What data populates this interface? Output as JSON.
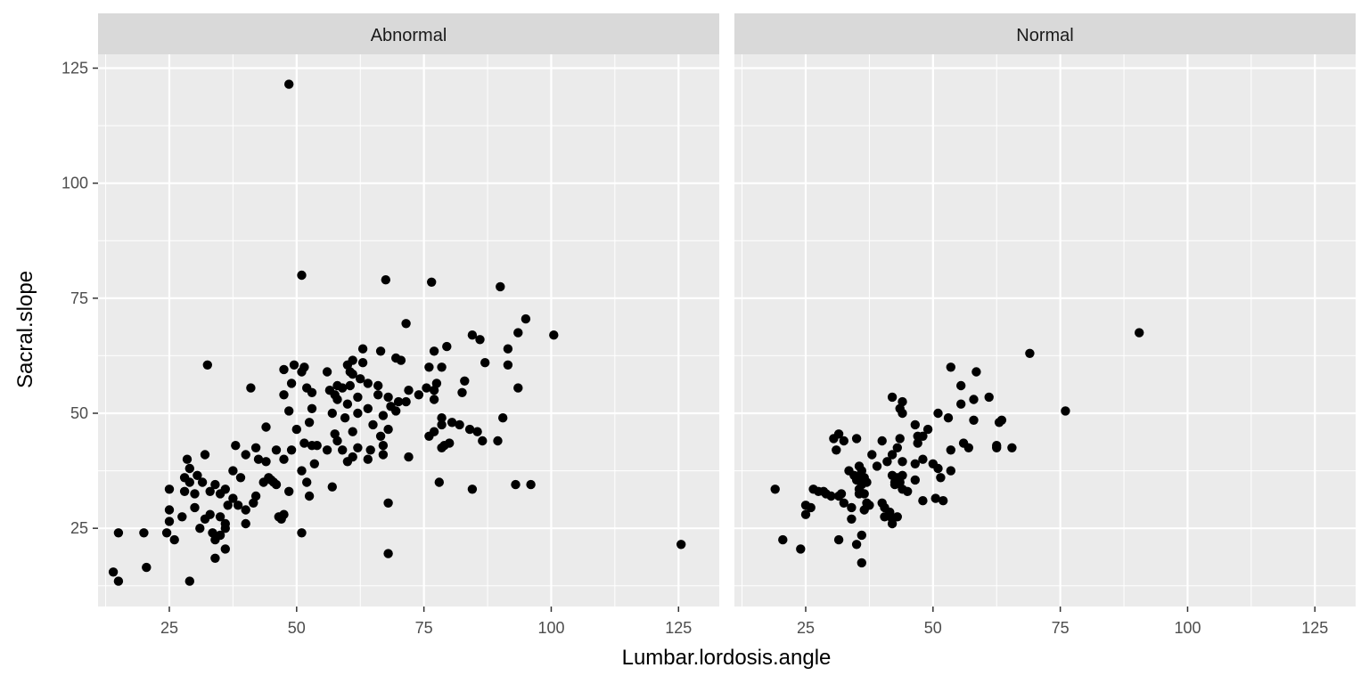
{
  "chart_data": {
    "type": "scatter",
    "title": "",
    "xlabel": "Lumbar.lordosis.angle",
    "ylabel": "Sacral.slope",
    "xlim": [
      11,
      133
    ],
    "ylim": [
      8,
      128
    ],
    "x_ticks": [
      25,
      50,
      75,
      100,
      125
    ],
    "y_ticks": [
      25,
      50,
      75,
      100,
      125
    ],
    "x_tick_labels": [
      "25",
      "50",
      "75",
      "100",
      "125"
    ],
    "y_tick_labels": [
      "25",
      "50",
      "75",
      "100",
      "125"
    ],
    "grid": true,
    "legend": "none",
    "colors": {
      "panel_bg": "#ebebeb",
      "strip_bg": "#d9d9d9",
      "grid": "#ffffff",
      "point": "#000000"
    },
    "facets": [
      {
        "label": "Abnormal",
        "points": [
          [
            48.5,
            121.5
          ],
          [
            51,
            80
          ],
          [
            67.5,
            79
          ],
          [
            76.5,
            78.5
          ],
          [
            90,
            77.5
          ],
          [
            95,
            70.5
          ],
          [
            71.5,
            69.5
          ],
          [
            93.5,
            67.5
          ],
          [
            100.5,
            67
          ],
          [
            84.5,
            67
          ],
          [
            86,
            66
          ],
          [
            79.5,
            64.5
          ],
          [
            91.5,
            64
          ],
          [
            63,
            64
          ],
          [
            66.5,
            63.5
          ],
          [
            77,
            63.5
          ],
          [
            69.5,
            62
          ],
          [
            70.5,
            61.5
          ],
          [
            61,
            61.5
          ],
          [
            63,
            61
          ],
          [
            87,
            61
          ],
          [
            32.5,
            60.5
          ],
          [
            49.5,
            60.5
          ],
          [
            60,
            60.5
          ],
          [
            51.5,
            60
          ],
          [
            47.5,
            59.5
          ],
          [
            76,
            60
          ],
          [
            78.5,
            60
          ],
          [
            91.5,
            60.5
          ],
          [
            56,
            59
          ],
          [
            51,
            59
          ],
          [
            60.5,
            59
          ],
          [
            61,
            58.5
          ],
          [
            62.5,
            57.5
          ],
          [
            64,
            56.5
          ],
          [
            66,
            56
          ],
          [
            49,
            56.5
          ],
          [
            52,
            55.5
          ],
          [
            56.5,
            55
          ],
          [
            58,
            56
          ],
          [
            59,
            55.5
          ],
          [
            60.5,
            56
          ],
          [
            72,
            55
          ],
          [
            77.5,
            56.5
          ],
          [
            83,
            57
          ],
          [
            77,
            55
          ],
          [
            75.5,
            55.5
          ],
          [
            82.5,
            54.5
          ],
          [
            93.5,
            55.5
          ],
          [
            74,
            54
          ],
          [
            41,
            55.5
          ],
          [
            47.5,
            54
          ],
          [
            53,
            54.5
          ],
          [
            57.5,
            54
          ],
          [
            62,
            53.5
          ],
          [
            66,
            54
          ],
          [
            68,
            53.5
          ],
          [
            70,
            52.5
          ],
          [
            71.5,
            52.5
          ],
          [
            77,
            53
          ],
          [
            58,
            53
          ],
          [
            60,
            52
          ],
          [
            64,
            51
          ],
          [
            68.5,
            51.5
          ],
          [
            69.5,
            50.5
          ],
          [
            53,
            51
          ],
          [
            57,
            50
          ],
          [
            59.5,
            49
          ],
          [
            62,
            50
          ],
          [
            48.5,
            50.5
          ],
          [
            67,
            49.5
          ],
          [
            78.5,
            49
          ],
          [
            80.5,
            48
          ],
          [
            82,
            47.5
          ],
          [
            84,
            46.5
          ],
          [
            85.5,
            46
          ],
          [
            90.5,
            49
          ],
          [
            78.5,
            47.5
          ],
          [
            44,
            47
          ],
          [
            52.5,
            48
          ],
          [
            65,
            47.5
          ],
          [
            68,
            46.5
          ],
          [
            50,
            46.5
          ],
          [
            61,
            46
          ],
          [
            57.5,
            45.5
          ],
          [
            66.5,
            45
          ],
          [
            76,
            45
          ],
          [
            77,
            46
          ],
          [
            79,
            43
          ],
          [
            80,
            43.5
          ],
          [
            78.5,
            42.5
          ],
          [
            86.5,
            44
          ],
          [
            89.5,
            44
          ],
          [
            38,
            43
          ],
          [
            42,
            42.5
          ],
          [
            46,
            42
          ],
          [
            49,
            42
          ],
          [
            51.5,
            43.5
          ],
          [
            53,
            43
          ],
          [
            54,
            43
          ],
          [
            56,
            42
          ],
          [
            58,
            44
          ],
          [
            59,
            42
          ],
          [
            62,
            42.5
          ],
          [
            64.5,
            42
          ],
          [
            67,
            43
          ],
          [
            47.5,
            40
          ],
          [
            40,
            41
          ],
          [
            42.5,
            40
          ],
          [
            44,
            39.5
          ],
          [
            53.5,
            39
          ],
          [
            60,
            39.5
          ],
          [
            61,
            40.5
          ],
          [
            64,
            40
          ],
          [
            67,
            41
          ],
          [
            72,
            40.5
          ],
          [
            32,
            41
          ],
          [
            51,
            37.5
          ],
          [
            44.5,
            36
          ],
          [
            43.5,
            35
          ],
          [
            45,
            35.5
          ],
          [
            45.5,
            35
          ],
          [
            46,
            34.5
          ],
          [
            52,
            35
          ],
          [
            57,
            34
          ],
          [
            78,
            35
          ],
          [
            84.5,
            33.5
          ],
          [
            93,
            34.5
          ],
          [
            96,
            34.5
          ],
          [
            25,
            33.5
          ],
          [
            28,
            33
          ],
          [
            30,
            32.5
          ],
          [
            33,
            33
          ],
          [
            35,
            32.5
          ],
          [
            42,
            32
          ],
          [
            48.5,
            33
          ],
          [
            52.5,
            32
          ],
          [
            30.5,
            36.5
          ],
          [
            31.5,
            35
          ],
          [
            34,
            34.5
          ],
          [
            36,
            33.5
          ],
          [
            37.5,
            37.5
          ],
          [
            39,
            36
          ],
          [
            29,
            35
          ],
          [
            28,
            36
          ],
          [
            29,
            38
          ],
          [
            28.5,
            40
          ],
          [
            25,
            29
          ],
          [
            27.5,
            27.5
          ],
          [
            25,
            26.5
          ],
          [
            30,
            29.5
          ],
          [
            31,
            25
          ],
          [
            32,
            27
          ],
          [
            33,
            28
          ],
          [
            35,
            27.5
          ],
          [
            36.5,
            30
          ],
          [
            37.5,
            31.5
          ],
          [
            36,
            26
          ],
          [
            40,
            29
          ],
          [
            38.5,
            30
          ],
          [
            41.5,
            30.5
          ],
          [
            40,
            26
          ],
          [
            46.5,
            27.5
          ],
          [
            47,
            27
          ],
          [
            47.5,
            28
          ],
          [
            36,
            25
          ],
          [
            33.5,
            24
          ],
          [
            35,
            23.5
          ],
          [
            34,
            22.5
          ],
          [
            36,
            20.5
          ],
          [
            26,
            22.5
          ],
          [
            24.5,
            24
          ],
          [
            20,
            24
          ],
          [
            15,
            24
          ],
          [
            51,
            24
          ],
          [
            34,
            18.5
          ],
          [
            20.5,
            16.5
          ],
          [
            14,
            15.5
          ],
          [
            15,
            13.5
          ],
          [
            29,
            13.5
          ],
          [
            68,
            30.5
          ],
          [
            68,
            19.5
          ],
          [
            125.5,
            21.5
          ]
        ]
      },
      {
        "label": "Normal",
        "points": [
          [
            90.5,
            67.5
          ],
          [
            69,
            63
          ],
          [
            53.5,
            60
          ],
          [
            58.5,
            59
          ],
          [
            55.5,
            56
          ],
          [
            61,
            53.5
          ],
          [
            58,
            53
          ],
          [
            63.5,
            48.5
          ],
          [
            63,
            48
          ],
          [
            65.5,
            42.5
          ],
          [
            62.5,
            43
          ],
          [
            62.5,
            42.5
          ],
          [
            76,
            50.5
          ],
          [
            42,
            53.5
          ],
          [
            44,
            52.5
          ],
          [
            43.5,
            51
          ],
          [
            44,
            50
          ],
          [
            51,
            50
          ],
          [
            53,
            49
          ],
          [
            55.5,
            52
          ],
          [
            58,
            48.5
          ],
          [
            56,
            43.5
          ],
          [
            57,
            42.5
          ],
          [
            53.5,
            42
          ],
          [
            49,
            46.5
          ],
          [
            46.5,
            47.5
          ],
          [
            47,
            45
          ],
          [
            48,
            45
          ],
          [
            47,
            43.5
          ],
          [
            43.5,
            44.5
          ],
          [
            43,
            42.5
          ],
          [
            40,
            44
          ],
          [
            42,
            41
          ],
          [
            44,
            39.5
          ],
          [
            46.5,
            39
          ],
          [
            48,
            40
          ],
          [
            50,
            39
          ],
          [
            51,
            38
          ],
          [
            51.5,
            36
          ],
          [
            53.5,
            37.5
          ],
          [
            38,
            41
          ],
          [
            39,
            38.5
          ],
          [
            41,
            39.5
          ],
          [
            42,
            36.5
          ],
          [
            43,
            36
          ],
          [
            44,
            36.5
          ],
          [
            46.5,
            35.5
          ],
          [
            42.5,
            35
          ],
          [
            43.5,
            35
          ],
          [
            42.5,
            34.5
          ],
          [
            44,
            33.5
          ],
          [
            45,
            33
          ],
          [
            48,
            31
          ],
          [
            50.5,
            31.5
          ],
          [
            52,
            31
          ],
          [
            30.5,
            44.5
          ],
          [
            31.5,
            45.5
          ],
          [
            32.5,
            44
          ],
          [
            35,
            44.5
          ],
          [
            31,
            42
          ],
          [
            33.5,
            37.5
          ],
          [
            34.5,
            36.5
          ],
          [
            35,
            36
          ],
          [
            35.5,
            38.5
          ],
          [
            36,
            37.5
          ],
          [
            36.5,
            36
          ],
          [
            35,
            35.5
          ],
          [
            35.5,
            33.5
          ],
          [
            36,
            34.5
          ],
          [
            37,
            35
          ],
          [
            35.5,
            32.5
          ],
          [
            36.5,
            32.5
          ],
          [
            37,
            30.5
          ],
          [
            37.5,
            30
          ],
          [
            36.5,
            29
          ],
          [
            40,
            30.5
          ],
          [
            40.5,
            29.5
          ],
          [
            41.5,
            28.5
          ],
          [
            42,
            27
          ],
          [
            43,
            27.5
          ],
          [
            42,
            26
          ],
          [
            40.5,
            27.5
          ],
          [
            26.5,
            33.5
          ],
          [
            27.5,
            33
          ],
          [
            28.5,
            33
          ],
          [
            29,
            32.5
          ],
          [
            30,
            32
          ],
          [
            31.5,
            32
          ],
          [
            32,
            32.5
          ],
          [
            32.5,
            30.5
          ],
          [
            34,
            29.5
          ],
          [
            25,
            30
          ],
          [
            26,
            29.5
          ],
          [
            25,
            28
          ],
          [
            19,
            33.5
          ],
          [
            20.5,
            22.5
          ],
          [
            24,
            20.5
          ],
          [
            31.5,
            22.5
          ],
          [
            34,
            27
          ],
          [
            35,
            21.5
          ],
          [
            36,
            23.5
          ],
          [
            36,
            17.5
          ]
        ]
      }
    ]
  }
}
